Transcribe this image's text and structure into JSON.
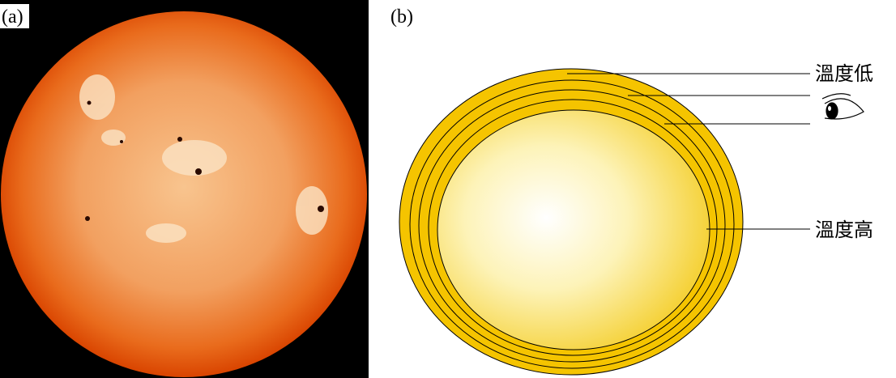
{
  "panel_a": {
    "label": "(a)"
  },
  "panel_b": {
    "label": "(b)",
    "labels": [
      "溫度低",
      "溫度高"
    ]
  }
}
